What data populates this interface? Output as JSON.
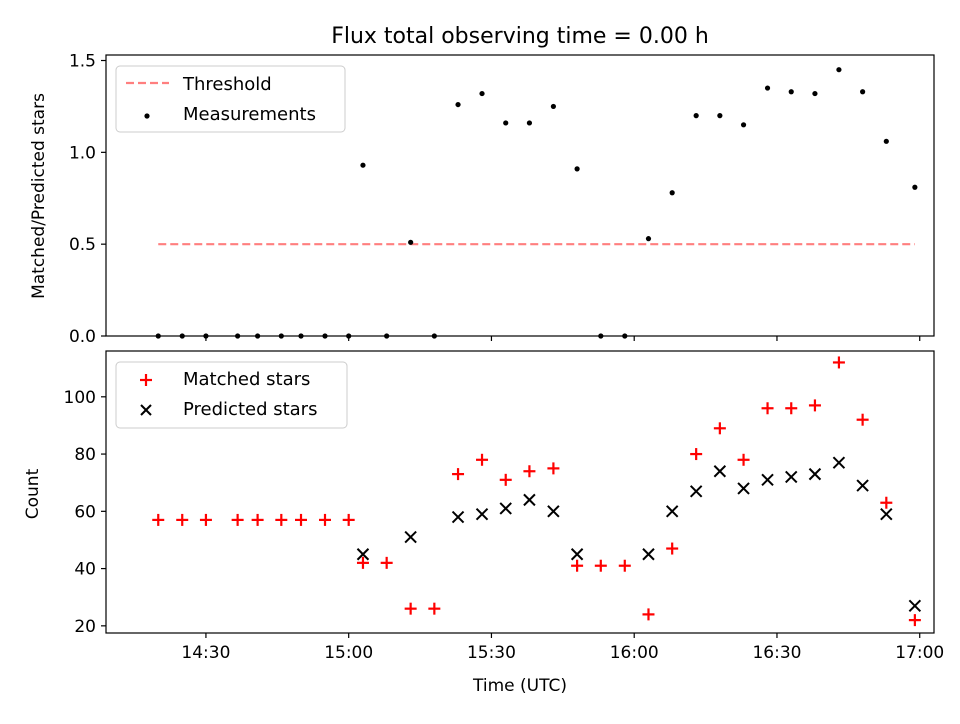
{
  "chart_data": [
    {
      "type": "scatter",
      "title": "Flux total observing time = 0.00 h",
      "xlabel": "",
      "ylabel": "Matched/Predicted stars",
      "xlim": [
        14.15,
        17.05
      ],
      "ylim": [
        0.0,
        1.53
      ],
      "yticks": [
        0.0,
        0.5,
        1.0,
        1.5
      ],
      "ytick_labels": [
        "0.0",
        "0.5",
        "1.0",
        "1.5"
      ],
      "xticks": [
        14.5,
        15.0,
        15.5,
        16.0,
        16.5,
        17.0
      ],
      "legend_position": "top-left",
      "series": [
        {
          "name": "Threshold",
          "kind": "dashed-line",
          "color": "#ff7f7f",
          "x": [
            14.333,
            16.983
          ],
          "y": [
            0.5,
            0.5
          ]
        },
        {
          "name": "Measurements",
          "kind": "points",
          "color": "#000000",
          "x": [
            14.333,
            14.417,
            14.5,
            14.611,
            14.681,
            14.764,
            14.833,
            14.917,
            15.0,
            15.05,
            15.133,
            15.217,
            15.3,
            15.383,
            15.467,
            15.55,
            15.633,
            15.717,
            15.8,
            15.883,
            15.967,
            16.05,
            16.133,
            16.217,
            16.3,
            16.383,
            16.467,
            16.55,
            16.633,
            16.717,
            16.8,
            16.883,
            16.983
          ],
          "y": [
            0.0,
            0.0,
            0.0,
            0.0,
            0.0,
            0.0,
            0.0,
            0.0,
            0.0,
            0.93,
            0.0,
            0.51,
            0.0,
            1.26,
            1.32,
            1.16,
            1.16,
            1.25,
            0.91,
            0.0,
            0.0,
            0.53,
            0.78,
            1.2,
            1.2,
            1.15,
            1.35,
            1.33,
            1.32,
            1.45,
            1.33,
            1.06,
            0.81
          ]
        }
      ]
    },
    {
      "type": "scatter",
      "title": "",
      "xlabel": "Time (UTC)",
      "ylabel": "Count",
      "xlim": [
        14.15,
        17.05
      ],
      "ylim": [
        17.5,
        116
      ],
      "yticks": [
        20,
        40,
        60,
        80,
        100
      ],
      "ytick_labels": [
        "20",
        "40",
        "60",
        "80",
        "100"
      ],
      "xticks": [
        14.5,
        15.0,
        15.5,
        16.0,
        16.5,
        17.0
      ],
      "xtick_labels": [
        "14:30",
        "15:00",
        "15:30",
        "16:00",
        "16:30",
        "17:00"
      ],
      "legend_position": "top-left",
      "series": [
        {
          "name": "Matched stars",
          "kind": "plus",
          "color": "#ff0000",
          "x": [
            14.333,
            14.417,
            14.5,
            14.611,
            14.681,
            14.764,
            14.833,
            14.917,
            15.0,
            15.05,
            15.133,
            15.217,
            15.3,
            15.383,
            15.467,
            15.55,
            15.633,
            15.717,
            15.8,
            15.883,
            15.967,
            16.05,
            16.133,
            16.217,
            16.3,
            16.383,
            16.467,
            16.55,
            16.633,
            16.717,
            16.8,
            16.883,
            16.983
          ],
          "y": [
            57,
            57,
            57,
            57,
            57,
            57,
            57,
            57,
            57,
            42,
            42,
            26,
            26,
            73,
            78,
            71,
            74,
            75,
            41,
            41,
            41,
            24,
            47,
            80,
            89,
            78,
            96,
            96,
            97,
            112,
            92,
            63,
            22
          ]
        },
        {
          "name": "Predicted stars",
          "kind": "cross",
          "color": "#000000",
          "x": [
            15.05,
            15.217,
            15.383,
            15.467,
            15.55,
            15.633,
            15.717,
            15.8,
            16.05,
            16.133,
            16.217,
            16.3,
            16.383,
            16.467,
            16.55,
            16.633,
            16.717,
            16.8,
            16.883,
            16.983
          ],
          "y": [
            45,
            51,
            58,
            59,
            61,
            64,
            60,
            45,
            45,
            60,
            67,
            74,
            68,
            71,
            72,
            73,
            77,
            69,
            59,
            27
          ]
        }
      ]
    }
  ]
}
